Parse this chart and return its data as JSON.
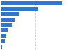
{
  "values": [
    27.0,
    16.5,
    8.0,
    6.2,
    4.8,
    3.2,
    2.4,
    1.8,
    0.7
  ],
  "bar_color": "#3375c8",
  "background_color": "#ffffff",
  "plot_background": "#ffffff",
  "xlim": [
    0,
    30
  ],
  "bar_height": 0.72,
  "grid_color": "#cccccc",
  "grid_positions": [
    15
  ]
}
